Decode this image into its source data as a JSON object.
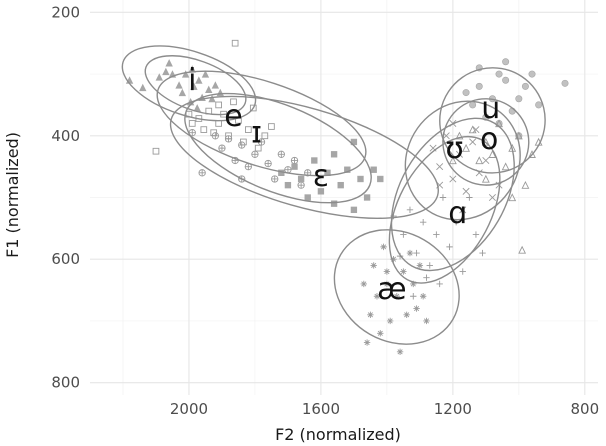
{
  "chart_data": {
    "type": "scatter",
    "title": "",
    "xlabel": "F2 (normalized)",
    "ylabel": "F1 (normalized)",
    "xlim": [
      2300,
      760
    ],
    "ylim": [
      820,
      180
    ],
    "x_reversed": true,
    "y_reversed": true,
    "x_ticks": [
      2000,
      1600,
      1200,
      800
    ],
    "y_ticks": [
      200,
      400,
      600,
      800
    ],
    "x_tick_labels": [
      "2000",
      "1600",
      "1200",
      "800"
    ],
    "y_tick_labels": [
      "200",
      "400",
      "600",
      "800"
    ],
    "grid": true,
    "legend": "none",
    "vowel_labels": [
      {
        "label": "i",
        "x": 1990,
        "y": 310
      },
      {
        "label": "e",
        "x": 1865,
        "y": 368
      },
      {
        "label": "ɪ",
        "x": 1795,
        "y": 395
      },
      {
        "label": "ɛ",
        "x": 1600,
        "y": 465
      },
      {
        "label": "æ",
        "x": 1385,
        "y": 648
      },
      {
        "label": "ɑ",
        "x": 1185,
        "y": 525
      },
      {
        "label": "ʊ",
        "x": 1195,
        "y": 420
      },
      {
        "label": "u",
        "x": 1085,
        "y": 355
      },
      {
        "label": "o",
        "x": 1090,
        "y": 405
      }
    ],
    "ellipses": [
      {
        "vowel": "i",
        "cx": 2000,
        "cy": 315,
        "rx": 210,
        "ry": 52,
        "angle": 18
      },
      {
        "vowel": "i",
        "cx": 1980,
        "cy": 318,
        "rx": 160,
        "ry": 40,
        "angle": 20
      },
      {
        "vowel": "e",
        "cx": 1780,
        "cy": 380,
        "rx": 330,
        "ry": 68,
        "angle": 18
      },
      {
        "vowel": "ɪ",
        "cx": 1730,
        "cy": 420,
        "rx": 300,
        "ry": 70,
        "angle": 22
      },
      {
        "vowel": "ɛ",
        "cx": 1650,
        "cy": 435,
        "rx": 420,
        "ry": 80,
        "angle": 16
      },
      {
        "vowel": "æ",
        "cx": 1370,
        "cy": 645,
        "rx": 165,
        "ry": 105,
        "angle": -60
      },
      {
        "vowel": "ɑ",
        "cx": 1225,
        "cy": 520,
        "rx": 240,
        "ry": 75,
        "angle": -62
      },
      {
        "vowel": "ɑ",
        "cx": 1200,
        "cy": 495,
        "rx": 250,
        "ry": 85,
        "angle": -60
      },
      {
        "vowel": "ʊ",
        "cx": 1170,
        "cy": 440,
        "rx": 185,
        "ry": 90,
        "angle": -55
      },
      {
        "vowel": "u",
        "cx": 1080,
        "cy": 375,
        "rx": 160,
        "ry": 85,
        "angle": -35
      },
      {
        "vowel": "o",
        "cx": 1100,
        "cy": 410,
        "rx": 130,
        "ry": 70,
        "angle": -20
      }
    ],
    "series": [
      {
        "vowel": "i",
        "marker": "triangle",
        "points": [
          [
            2180,
            310
          ],
          [
            2140,
            322
          ],
          [
            2090,
            305
          ],
          [
            2070,
            296
          ],
          [
            2050,
            300
          ],
          [
            2030,
            318
          ],
          [
            2020,
            330
          ],
          [
            2010,
            300
          ],
          [
            1995,
            345
          ],
          [
            1985,
            320
          ],
          [
            1970,
            310
          ],
          [
            1960,
            338
          ],
          [
            1950,
            300
          ],
          [
            1940,
            325
          ],
          [
            1930,
            340
          ],
          [
            1920,
            318
          ],
          [
            1905,
            330
          ],
          [
            2060,
            282
          ],
          [
            1990,
            292
          ],
          [
            1975,
            355
          ]
        ]
      },
      {
        "vowel": "e",
        "marker": "square",
        "points": [
          [
            2000,
            365
          ],
          [
            1990,
            380
          ],
          [
            1970,
            372
          ],
          [
            1955,
            390
          ],
          [
            1940,
            360
          ],
          [
            1925,
            395
          ],
          [
            1910,
            380
          ],
          [
            1895,
            365
          ],
          [
            1880,
            400
          ],
          [
            1865,
            345
          ],
          [
            1850,
            375
          ],
          [
            1835,
            410
          ],
          [
            1820,
            390
          ],
          [
            1805,
            355
          ],
          [
            1790,
            420
          ],
          [
            1770,
            400
          ],
          [
            1750,
            385
          ],
          [
            1860,
            250
          ],
          [
            1910,
            350
          ],
          [
            2100,
            425
          ]
        ]
      },
      {
        "vowel": "ɪ",
        "marker": "circle-plus",
        "points": [
          [
            1920,
            400
          ],
          [
            1900,
            420
          ],
          [
            1880,
            405
          ],
          [
            1860,
            440
          ],
          [
            1840,
            415
          ],
          [
            1820,
            450
          ],
          [
            1800,
            430
          ],
          [
            1780,
            410
          ],
          [
            1760,
            445
          ],
          [
            1740,
            470
          ],
          [
            1720,
            430
          ],
          [
            1700,
            455
          ],
          [
            1680,
            440
          ],
          [
            1660,
            480
          ],
          [
            1640,
            460
          ],
          [
            1960,
            460
          ],
          [
            1840,
            470
          ],
          [
            1990,
            395
          ]
        ]
      },
      {
        "vowel": "ɛ",
        "marker": "square-filled",
        "points": [
          [
            1720,
            460
          ],
          [
            1700,
            480
          ],
          [
            1680,
            450
          ],
          [
            1660,
            470
          ],
          [
            1640,
            500
          ],
          [
            1620,
            440
          ],
          [
            1600,
            490
          ],
          [
            1580,
            460
          ],
          [
            1560,
            510
          ],
          [
            1540,
            480
          ],
          [
            1520,
            455
          ],
          [
            1500,
            520
          ],
          [
            1480,
            470
          ],
          [
            1460,
            500
          ],
          [
            1440,
            455
          ],
          [
            1420,
            470
          ],
          [
            1500,
            410
          ],
          [
            1560,
            430
          ]
        ]
      },
      {
        "vowel": "æ",
        "marker": "asterisk",
        "points": [
          [
            1470,
            640
          ],
          [
            1450,
            690
          ],
          [
            1440,
            610
          ],
          [
            1430,
            660
          ],
          [
            1420,
            720
          ],
          [
            1410,
            580
          ],
          [
            1400,
            640
          ],
          [
            1390,
            700
          ],
          [
            1380,
            600
          ],
          [
            1370,
            660
          ],
          [
            1360,
            750
          ],
          [
            1350,
            620
          ],
          [
            1340,
            690
          ],
          [
            1330,
            590
          ],
          [
            1320,
            640
          ],
          [
            1310,
            680
          ],
          [
            1300,
            610
          ],
          [
            1290,
            660
          ],
          [
            1460,
            735
          ],
          [
            1280,
            700
          ],
          [
            1400,
            620
          ]
        ]
      },
      {
        "vowel": "ɑ",
        "marker": "plus",
        "points": [
          [
            1380,
            530
          ],
          [
            1350,
            560
          ],
          [
            1330,
            520
          ],
          [
            1310,
            590
          ],
          [
            1290,
            540
          ],
          [
            1270,
            610
          ],
          [
            1250,
            560
          ],
          [
            1230,
            500
          ],
          [
            1210,
            580
          ],
          [
            1190,
            540
          ],
          [
            1170,
            620
          ],
          [
            1150,
            500
          ],
          [
            1130,
            560
          ],
          [
            1110,
            590
          ],
          [
            1320,
            660
          ],
          [
            1280,
            630
          ],
          [
            1240,
            640
          ],
          [
            1360,
            595
          ]
        ]
      },
      {
        "vowel": "ʊ",
        "marker": "cross",
        "points": [
          [
            1260,
            420
          ],
          [
            1240,
            450
          ],
          [
            1220,
            400
          ],
          [
            1200,
            470
          ],
          [
            1180,
            430
          ],
          [
            1160,
            490
          ],
          [
            1140,
            410
          ],
          [
            1120,
            460
          ],
          [
            1100,
            440
          ],
          [
            1080,
            500
          ],
          [
            1200,
            380
          ],
          [
            1130,
            390
          ],
          [
            1060,
            480
          ],
          [
            1240,
            480
          ],
          [
            1170,
            520
          ]
        ]
      },
      {
        "vowel": "u",
        "marker": "circle-filled",
        "points": [
          [
            1160,
            330
          ],
          [
            1140,
            350
          ],
          [
            1120,
            320
          ],
          [
            1100,
            370
          ],
          [
            1080,
            340
          ],
          [
            1060,
            380
          ],
          [
            1040,
            310
          ],
          [
            1020,
            360
          ],
          [
            1000,
            340
          ],
          [
            980,
            320
          ],
          [
            960,
            300
          ],
          [
            940,
            350
          ],
          [
            1120,
            290
          ],
          [
            1060,
            300
          ],
          [
            1000,
            400
          ],
          [
            860,
            315
          ],
          [
            1040,
            280
          ]
        ]
      },
      {
        "vowel": "o",
        "marker": "triangle-open",
        "points": [
          [
            1180,
            400
          ],
          [
            1160,
            420
          ],
          [
            1140,
            390
          ],
          [
            1120,
            440
          ],
          [
            1100,
            410
          ],
          [
            1080,
            430
          ],
          [
            1060,
            380
          ],
          [
            1040,
            450
          ],
          [
            1020,
            420
          ],
          [
            1000,
            400
          ],
          [
            980,
            480
          ],
          [
            960,
            430
          ],
          [
            1200,
            440
          ],
          [
            1100,
            470
          ],
          [
            1020,
            500
          ],
          [
            940,
            410
          ],
          [
            990,
            585
          ]
        ]
      }
    ]
  }
}
